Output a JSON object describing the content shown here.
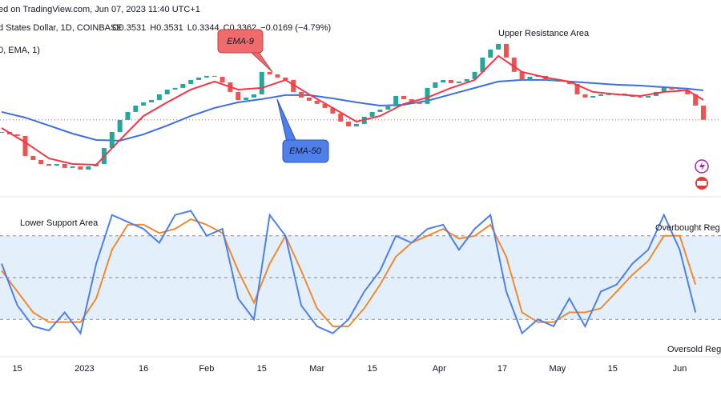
{
  "header": {
    "published": "ed on TradingView.com, Jun 07, 2023 11:40 UTC+1",
    "symbol": "d States Dollar, 1D, COINBASE",
    "ohlc": [
      "O0.3531",
      "H0.3531",
      "L0.3344",
      "C0.3362",
      "−0.0169 (−4.79%)"
    ],
    "indicator": "0, EMA, 1)"
  },
  "chart_data": [
    {
      "type": "candlestick",
      "up_color": "#26a69a",
      "down_color": "#ef5350",
      "xlim": [
        0,
        89
      ],
      "ylim": [
        0.25,
        0.46
      ],
      "close": [
        0.3216,
        0.3188,
        0.3169,
        0.293,
        0.2882,
        0.2834,
        0.2815,
        0.2834,
        0.2787,
        0.2806,
        0.2767,
        0.2806,
        0.2834,
        0.3025,
        0.3216,
        0.336,
        0.3455,
        0.3531,
        0.357,
        0.3598,
        0.3665,
        0.3722,
        0.3742,
        0.3789,
        0.3837,
        0.3866,
        0.3885,
        0.3875,
        0.3808,
        0.3694,
        0.3598,
        0.3627,
        0.3665,
        0.3933,
        0.3904,
        0.3866,
        0.3837,
        0.3694,
        0.3627,
        0.3589,
        0.3551,
        0.3503,
        0.3436,
        0.334,
        0.3283,
        0.3312,
        0.3398,
        0.3455,
        0.3484,
        0.3522,
        0.3646,
        0.3608,
        0.357,
        0.3551,
        0.3742,
        0.3808,
        0.3837,
        0.3799,
        0.3818,
        0.3847,
        0.3933,
        0.4104,
        0.42,
        0.4267,
        0.4104,
        0.3933,
        0.3837,
        0.3875,
        0.3885,
        0.3837,
        0.3837,
        0.3818,
        0.3789,
        0.3665,
        0.3627,
        0.3646,
        0.3665,
        0.3665,
        0.3675,
        0.3656,
        0.3636,
        0.3627,
        0.3646,
        0.3694,
        0.3742,
        0.3722,
        0.3713,
        0.3665,
        0.3531,
        0.3362
      ],
      "series": [
        {
          "name": "EMA-9",
          "color": "#f23645",
          "x": [
            0,
            3,
            6,
            9,
            12,
            15,
            18,
            21,
            24,
            27,
            30,
            33,
            36,
            39,
            42,
            45,
            48,
            51,
            54,
            57,
            60,
            63,
            66,
            69,
            72,
            75,
            78,
            81,
            84,
            87,
            89
          ],
          "values": [
            0.3264,
            0.3092,
            0.2901,
            0.2834,
            0.2825,
            0.3121,
            0.3407,
            0.357,
            0.3722,
            0.3818,
            0.3722,
            0.3742,
            0.3837,
            0.3665,
            0.3503,
            0.334,
            0.3407,
            0.3551,
            0.3627,
            0.3742,
            0.3837,
            0.4124,
            0.3933,
            0.3866,
            0.3818,
            0.3694,
            0.3665,
            0.3646,
            0.3694,
            0.3713,
            0.3598
          ]
        },
        {
          "name": "EMA-50",
          "color": "#3d6fe0",
          "x": [
            0,
            3,
            6,
            9,
            12,
            15,
            18,
            21,
            24,
            27,
            30,
            33,
            36,
            39,
            42,
            45,
            48,
            51,
            54,
            57,
            60,
            63,
            66,
            69,
            72,
            75,
            78,
            81,
            84,
            87,
            89
          ],
          "values": [
            0.3455,
            0.3388,
            0.3293,
            0.3197,
            0.3121,
            0.3112,
            0.3188,
            0.3293,
            0.3407,
            0.3503,
            0.357,
            0.3608,
            0.3656,
            0.3656,
            0.3617,
            0.357,
            0.3531,
            0.3541,
            0.3589,
            0.3665,
            0.3742,
            0.3818,
            0.3837,
            0.3837,
            0.3818,
            0.3799,
            0.378,
            0.377,
            0.3751,
            0.3732,
            0.3713
          ]
        }
      ],
      "annotations": [
        "Upper Resistance Area"
      ]
    },
    {
      "type": "line",
      "xlim": [
        0,
        89
      ],
      "ylim": [
        0,
        100
      ],
      "levels": [
        80,
        50,
        20
      ],
      "band_color": "#e3f0fb",
      "series": [
        {
          "name": "K",
          "color": "#4f7fe8",
          "x": [
            0,
            2,
            4,
            6,
            8,
            10,
            12,
            14,
            16,
            18,
            20,
            22,
            24,
            26,
            28,
            30,
            32,
            34,
            36,
            38,
            40,
            42,
            44,
            46,
            48,
            50,
            52,
            54,
            56,
            58,
            60,
            62,
            64,
            66,
            68,
            70,
            72,
            74,
            76,
            78,
            80,
            82,
            84,
            86,
            88
          ],
          "values": [
            60,
            30,
            15,
            12,
            25,
            10,
            60,
            95,
            90,
            85,
            75,
            95,
            98,
            80,
            85,
            35,
            20,
            95,
            80,
            30,
            15,
            10,
            20,
            40,
            55,
            80,
            75,
            85,
            88,
            70,
            85,
            95,
            40,
            10,
            20,
            15,
            35,
            15,
            40,
            45,
            60,
            70,
            95,
            70,
            25
          ]
        },
        {
          "name": "D",
          "color": "#f08a30",
          "x": [
            0,
            2,
            4,
            6,
            8,
            10,
            12,
            14,
            16,
            18,
            20,
            22,
            24,
            26,
            28,
            30,
            32,
            34,
            36,
            38,
            40,
            42,
            44,
            46,
            48,
            50,
            52,
            54,
            56,
            58,
            60,
            62,
            64,
            66,
            68,
            70,
            72,
            74,
            76,
            78,
            80,
            82,
            84,
            86,
            88
          ],
          "values": [
            55,
            40,
            25,
            18,
            18,
            18,
            35,
            70,
            88,
            88,
            82,
            85,
            92,
            88,
            82,
            55,
            32,
            60,
            80,
            55,
            28,
            15,
            15,
            28,
            45,
            65,
            75,
            80,
            85,
            78,
            80,
            88,
            65,
            25,
            18,
            18,
            25,
            25,
            28,
            40,
            52,
            62,
            80,
            80,
            45
          ]
        }
      ],
      "xticks": [
        {
          "value": 2,
          "label": "15"
        },
        {
          "value": 10.5,
          "label": "2023"
        },
        {
          "value": 18,
          "label": "16"
        },
        {
          "value": 26,
          "label": "Feb"
        },
        {
          "value": 33,
          "label": "15"
        },
        {
          "value": 40,
          "label": "Mar"
        },
        {
          "value": 47,
          "label": "15"
        },
        {
          "value": 55.5,
          "label": "Apr"
        },
        {
          "value": 63.5,
          "label": "17"
        },
        {
          "value": 70.5,
          "label": "May"
        },
        {
          "value": 77.5,
          "label": "15"
        },
        {
          "value": 86,
          "label": "Jun"
        }
      ],
      "annotations": [
        "Lower Support Area",
        "Overbought Reg",
        "Oversold Reg"
      ]
    }
  ]
}
